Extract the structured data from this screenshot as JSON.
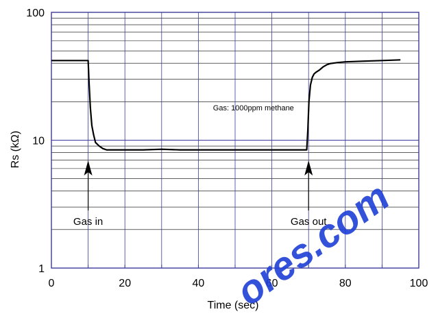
{
  "colors": {
    "minor_grid": "#000000",
    "major_grid": "#3a3a9a",
    "frame": "#3a3a9a",
    "line": "#000000",
    "watermark": "#1f3fd6"
  },
  "chart_data": {
    "type": "line",
    "xlabel": "Time (sec)",
    "ylabel": "Rs (kΩ)",
    "x_scale": "linear",
    "y_scale": "log",
    "xlim": [
      0,
      100
    ],
    "ylim": [
      1,
      100
    ],
    "grid": true,
    "x_ticks": [
      0,
      20,
      40,
      60,
      80,
      100
    ],
    "x_tick_labels": [
      "0",
      "20",
      "40",
      "60",
      "80",
      "100"
    ],
    "y_ticks": [
      1,
      10,
      100
    ],
    "y_tick_labels": [
      "1",
      "10",
      "100"
    ],
    "series": [
      {
        "x": [
          0,
          5,
          10,
          10.2,
          10.6,
          11,
          11.5,
          12,
          13,
          14,
          15,
          20,
          25,
          30,
          35,
          40,
          45,
          50,
          55,
          60,
          65,
          69.5,
          69.8,
          70.1,
          70.5,
          71,
          71.5,
          72,
          73,
          74,
          75,
          76,
          78,
          80,
          85,
          90,
          95
        ],
        "y": [
          42,
          42,
          42,
          30,
          18,
          13,
          11,
          9.6,
          9,
          8.6,
          8.4,
          8.4,
          8.4,
          8.5,
          8.4,
          8.4,
          8.4,
          8.4,
          8.4,
          8.4,
          8.4,
          8.4,
          12,
          20,
          27,
          31,
          33,
          34,
          35.5,
          37.5,
          39,
          39.8,
          40.5,
          41,
          41.5,
          42,
          42.5
        ]
      }
    ],
    "annotations": [
      {
        "text": "Gas: 1000ppm methane",
        "x": 55,
        "y": 18
      },
      {
        "text": "Gas in",
        "x": 10,
        "y": 2.5
      },
      {
        "text": "Gas out",
        "x": 70,
        "y": 2.5
      }
    ]
  },
  "watermark": {
    "text": "ores.com"
  }
}
